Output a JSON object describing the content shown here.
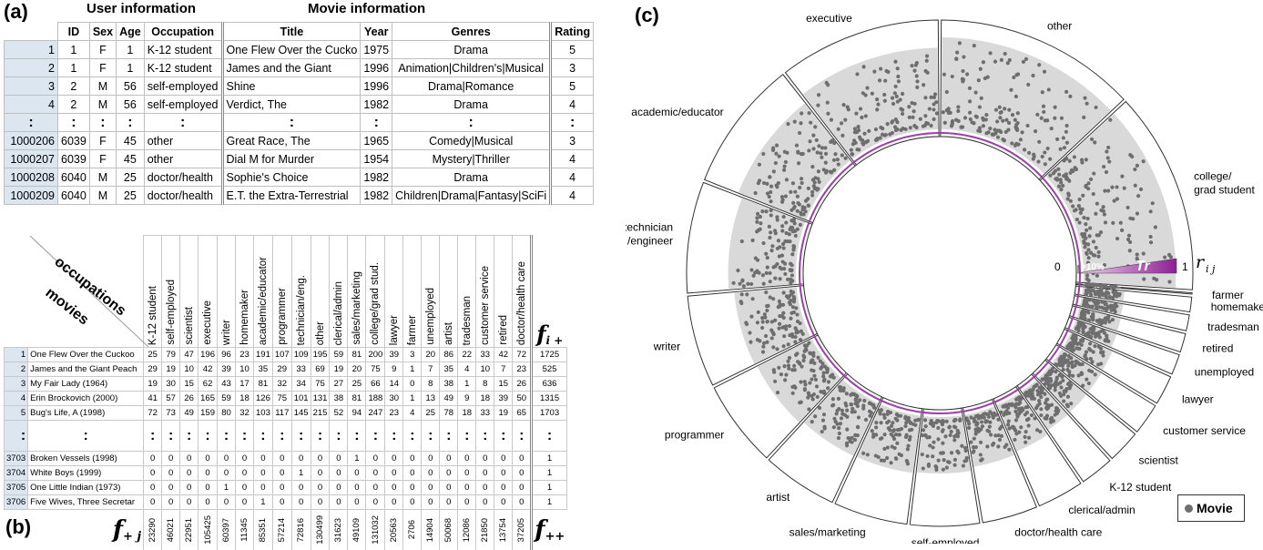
{
  "panel_a": {
    "label": "(a)",
    "group_user": "User information",
    "group_movie": "Movie information",
    "headers": [
      "ID",
      "Sex",
      "Age",
      "Occupation",
      "Title",
      "Year",
      "Genres",
      "Rating"
    ],
    "rows_top": [
      [
        "1",
        "1",
        "F",
        "1",
        "K-12 student",
        "One Flew Over the Cucko",
        "1975",
        "Drama",
        "5"
      ],
      [
        "2",
        "1",
        "F",
        "1",
        "K-12 student",
        "James and the Giant",
        "1996",
        "Animation|Children's|Musical",
        "3"
      ],
      [
        "3",
        "2",
        "M",
        "56",
        "self-employed",
        "Shine",
        "1996",
        "Drama|Romance",
        "5"
      ],
      [
        "4",
        "2",
        "M",
        "56",
        "self-employed",
        "Verdict, The",
        "1982",
        "Drama",
        "4"
      ]
    ],
    "ellipsis": ":",
    "rows_bottom": [
      [
        "1000206",
        "6039",
        "F",
        "45",
        "other",
        "Great Race, The",
        "1965",
        "Comedy|Musical",
        "3"
      ],
      [
        "1000207",
        "6039",
        "F",
        "45",
        "other",
        "Dial M for Murder",
        "1954",
        "Mystery|Thriller",
        "4"
      ],
      [
        "1000208",
        "6040",
        "M",
        "25",
        "doctor/health",
        "Sophie's Choice",
        "1982",
        "Drama",
        "4"
      ],
      [
        "1000209",
        "6040",
        "M",
        "25",
        "doctor/health",
        "E.T. the Extra-Terrestrial",
        "1982",
        "Children|Drama|Fantasy|SciFi",
        "4"
      ]
    ]
  },
  "panel_b": {
    "label": "(b)",
    "corner_top": "occupations",
    "corner_bottom": "movies",
    "columns": [
      "K-12 student",
      "self-employed",
      "scientist",
      "executive",
      "writer",
      "homemaker",
      "academic/educator",
      "programmer",
      "technician/eng.",
      "other",
      "clerical/admin",
      "sales/marketing",
      "college/grad stud.",
      "lawyer",
      "farmer",
      "unemployed",
      "artist",
      "tradesman",
      "customer service",
      "retired",
      "doctor/health care"
    ],
    "row_sum_label": "f",
    "row_sum_sub": "i +",
    "col_sum_label": "f",
    "col_sum_sub": "+ j",
    "total_label": "f",
    "total_sub": "++",
    "rows_top": [
      {
        "n": "1",
        "movie": "One Flew Over the Cuckoo",
        "vals": [
          "25",
          "79",
          "47",
          "196",
          "96",
          "23",
          "191",
          "107",
          "109",
          "195",
          "59",
          "81",
          "200",
          "39",
          "3",
          "20",
          "86",
          "22",
          "33",
          "42",
          "72"
        ],
        "sum": "1725"
      },
      {
        "n": "2",
        "movie": "James and the Giant Peach",
        "vals": [
          "29",
          "19",
          "10",
          "42",
          "39",
          "10",
          "35",
          "29",
          "33",
          "69",
          "19",
          "20",
          "75",
          "9",
          "1",
          "7",
          "35",
          "4",
          "10",
          "7",
          "23"
        ],
        "sum": "525"
      },
      {
        "n": "3",
        "movie": "My Fair Lady (1964)",
        "vals": [
          "19",
          "30",
          "15",
          "62",
          "43",
          "17",
          "81",
          "32",
          "34",
          "75",
          "27",
          "25",
          "66",
          "14",
          "0",
          "8",
          "38",
          "1",
          "8",
          "15",
          "26"
        ],
        "sum": "636"
      },
      {
        "n": "4",
        "movie": "Erin Brockovich (2000)",
        "vals": [
          "41",
          "57",
          "26",
          "165",
          "59",
          "18",
          "126",
          "75",
          "101",
          "131",
          "38",
          "81",
          "188",
          "30",
          "1",
          "13",
          "49",
          "9",
          "18",
          "39",
          "50"
        ],
        "sum": "1315"
      },
      {
        "n": "5",
        "movie": "Bug's Life, A (1998)",
        "vals": [
          "72",
          "73",
          "49",
          "159",
          "80",
          "32",
          "103",
          "117",
          "145",
          "215",
          "52",
          "94",
          "247",
          "23",
          "4",
          "25",
          "78",
          "18",
          "33",
          "19",
          "65"
        ],
        "sum": "1703"
      }
    ],
    "ellipsis": ":",
    "rows_bottom": [
      {
        "n": "3703",
        "movie": "Broken Vessels (1998)",
        "vals": [
          "0",
          "0",
          "0",
          "0",
          "0",
          "0",
          "0",
          "0",
          "0",
          "0",
          "0",
          "1",
          "0",
          "0",
          "0",
          "0",
          "0",
          "0",
          "0",
          "0",
          "0"
        ],
        "sum": "1"
      },
      {
        "n": "3704",
        "movie": "White Boys (1999)",
        "vals": [
          "0",
          "0",
          "0",
          "0",
          "0",
          "0",
          "0",
          "0",
          "1",
          "0",
          "0",
          "0",
          "0",
          "0",
          "0",
          "0",
          "0",
          "0",
          "0",
          "0",
          "0"
        ],
        "sum": "1"
      },
      {
        "n": "3705",
        "movie": "One Little Indian (1973)",
        "vals": [
          "0",
          "0",
          "0",
          "0",
          "1",
          "0",
          "0",
          "0",
          "0",
          "0",
          "0",
          "0",
          "0",
          "0",
          "0",
          "0",
          "0",
          "0",
          "0",
          "0",
          "0"
        ],
        "sum": "1"
      },
      {
        "n": "3706",
        "movie": "Five Wives, Three Secretar",
        "vals": [
          "0",
          "0",
          "0",
          "0",
          "0",
          "0",
          "1",
          "0",
          "0",
          "0",
          "0",
          "0",
          "0",
          "0",
          "0",
          "0",
          "0",
          "0",
          "0",
          "0",
          "0"
        ],
        "sum": "1"
      }
    ],
    "col_sums": [
      "23290",
      "46021",
      "22951",
      "105425",
      "60397",
      "11345",
      "85351",
      "57214",
      "72816",
      "130499",
      "31623",
      "49109",
      "131032",
      "20563",
      "2706",
      "14904",
      "50068",
      "12086",
      "21850",
      "13754",
      "37205"
    ]
  },
  "panel_c": {
    "label": "(c)",
    "legend_text": "Movie",
    "scale_zero": "0",
    "scale_pct": ">10%",
    "scale_tr": "Tr",
    "scale_one": "1",
    "scale_r": "r",
    "scale_r_sub": "i j",
    "sectors": [
      {
        "label": "other",
        "share": 0.1305
      },
      {
        "label": "college/\ngrad student",
        "share": 0.131
      },
      {
        "label": "farmer",
        "share": 0.0027
      },
      {
        "label": "homemaker",
        "share": 0.0113
      },
      {
        "label": "tradesman",
        "share": 0.0121
      },
      {
        "label": "retired",
        "share": 0.0138
      },
      {
        "label": "unemployed",
        "share": 0.0149
      },
      {
        "label": "lawyer",
        "share": 0.0206
      },
      {
        "label": "customer service",
        "share": 0.0219
      },
      {
        "label": "scientist",
        "share": 0.023
      },
      {
        "label": "K-12 student",
        "share": 0.0233
      },
      {
        "label": "clerical/admin",
        "share": 0.0316
      },
      {
        "label": "doctor/health care",
        "share": 0.0372
      },
      {
        "label": "self-employed",
        "share": 0.046
      },
      {
        "label": "sales/marketing",
        "share": 0.0491
      },
      {
        "label": "artist",
        "share": 0.0501
      },
      {
        "label": "programmer",
        "share": 0.0572
      },
      {
        "label": "writer",
        "share": 0.0604
      },
      {
        "label": "technician\n/engineer",
        "share": 0.0728
      },
      {
        "label": "academic/educator",
        "share": 0.0854
      },
      {
        "label": "executive",
        "share": 0.1054
      }
    ],
    "colors": {
      "sector_fill": "#d9d9d9",
      "dot": "#6e6e6e",
      "ring": "#9c3fa8",
      "chord": "#555555",
      "scale": "#8e1f94"
    }
  }
}
